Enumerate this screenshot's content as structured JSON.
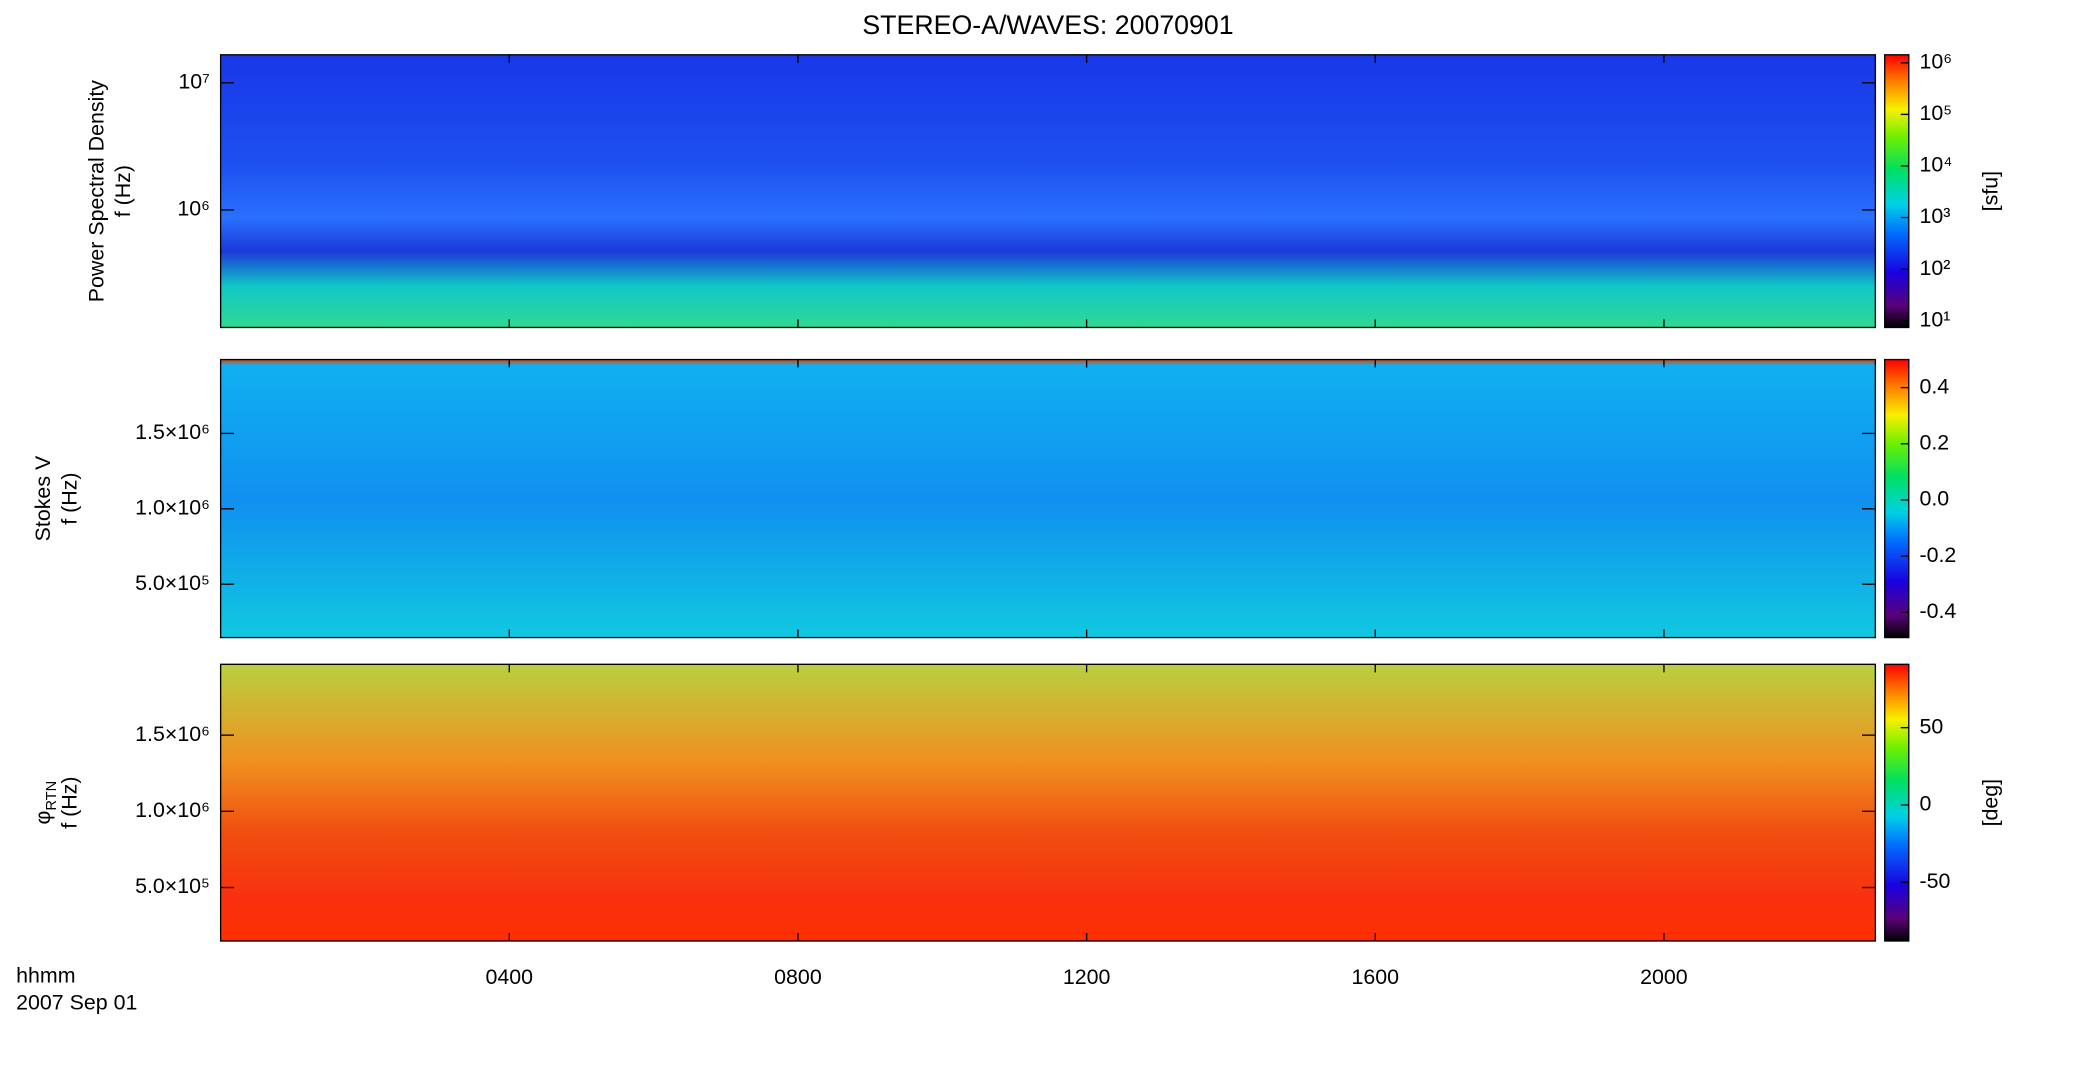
{
  "chart_data": [
    {
      "type": "heatmap",
      "title": "STEREO-A/WAVES: 20070901",
      "ylabel": "Power Spectral Density",
      "ylabel_unit": "f (Hz)",
      "ylog": true,
      "ylim": [
        119000,
        16600000
      ],
      "yticks": [
        {
          "value": 1000000,
          "label": "10⁶"
        },
        {
          "value": 10000000,
          "label": "10⁷"
        }
      ],
      "xlim": [
        0,
        22.93
      ],
      "colorbar_log": true,
      "clim": [
        7.4,
        1430000
      ],
      "cticks": [
        {
          "value": 10,
          "label": "10¹"
        },
        {
          "value": 100,
          "label": "10²"
        },
        {
          "value": 1000,
          "label": "10³"
        },
        {
          "value": 10000,
          "label": "10⁴"
        },
        {
          "value": 100000,
          "label": "10⁵"
        },
        {
          "value": 1000000,
          "label": "10⁶"
        }
      ],
      "colorbar_label": "[sfu]"
    },
    {
      "type": "heatmap",
      "ylabel": "Stokes V",
      "ylabel_unit": "f (Hz)",
      "ylog": false,
      "ylim": [
        146000,
        1990000
      ],
      "yticks": [
        {
          "value": 500000,
          "label": "5.0×10⁵"
        },
        {
          "value": 1000000,
          "label": "1.0×10⁶"
        },
        {
          "value": 1500000,
          "label": "1.5×10⁶"
        }
      ],
      "xlim": [
        0,
        22.93
      ],
      "colorbar_log": false,
      "clim": [
        -0.49,
        0.5
      ],
      "cticks": [
        -0.4,
        -0.2,
        {
          "value": 0,
          "label": "0.0"
        },
        0.2,
        0.4
      ]
    },
    {
      "type": "heatmap",
      "ylabel": "φ",
      "ylabel_sub": "RTN",
      "ylabel_unit": "f (Hz)",
      "ylog": false,
      "ylim": [
        149000,
        1965000
      ],
      "yticks": [
        {
          "value": 500000,
          "label": "5.0×10⁵"
        },
        {
          "value": 1000000,
          "label": "1.0×10⁶"
        },
        {
          "value": 1500000,
          "label": "1.5×10⁶"
        }
      ],
      "xlim": [
        0,
        22.93
      ],
      "xticks": [
        {
          "value": 4,
          "label": "0400"
        },
        {
          "value": 8,
          "label": "0800"
        },
        {
          "value": 12,
          "label": "1200"
        },
        {
          "value": 16,
          "label": "1600"
        },
        {
          "value": 20,
          "label": "2000"
        }
      ],
      "x_label": "hhmm",
      "date_label": "2007 Sep 01",
      "colorbar_log": false,
      "clim": [
        -88,
        91
      ],
      "cticks": [
        -50,
        0,
        50
      ],
      "colorbar_label": "[deg]"
    }
  ]
}
